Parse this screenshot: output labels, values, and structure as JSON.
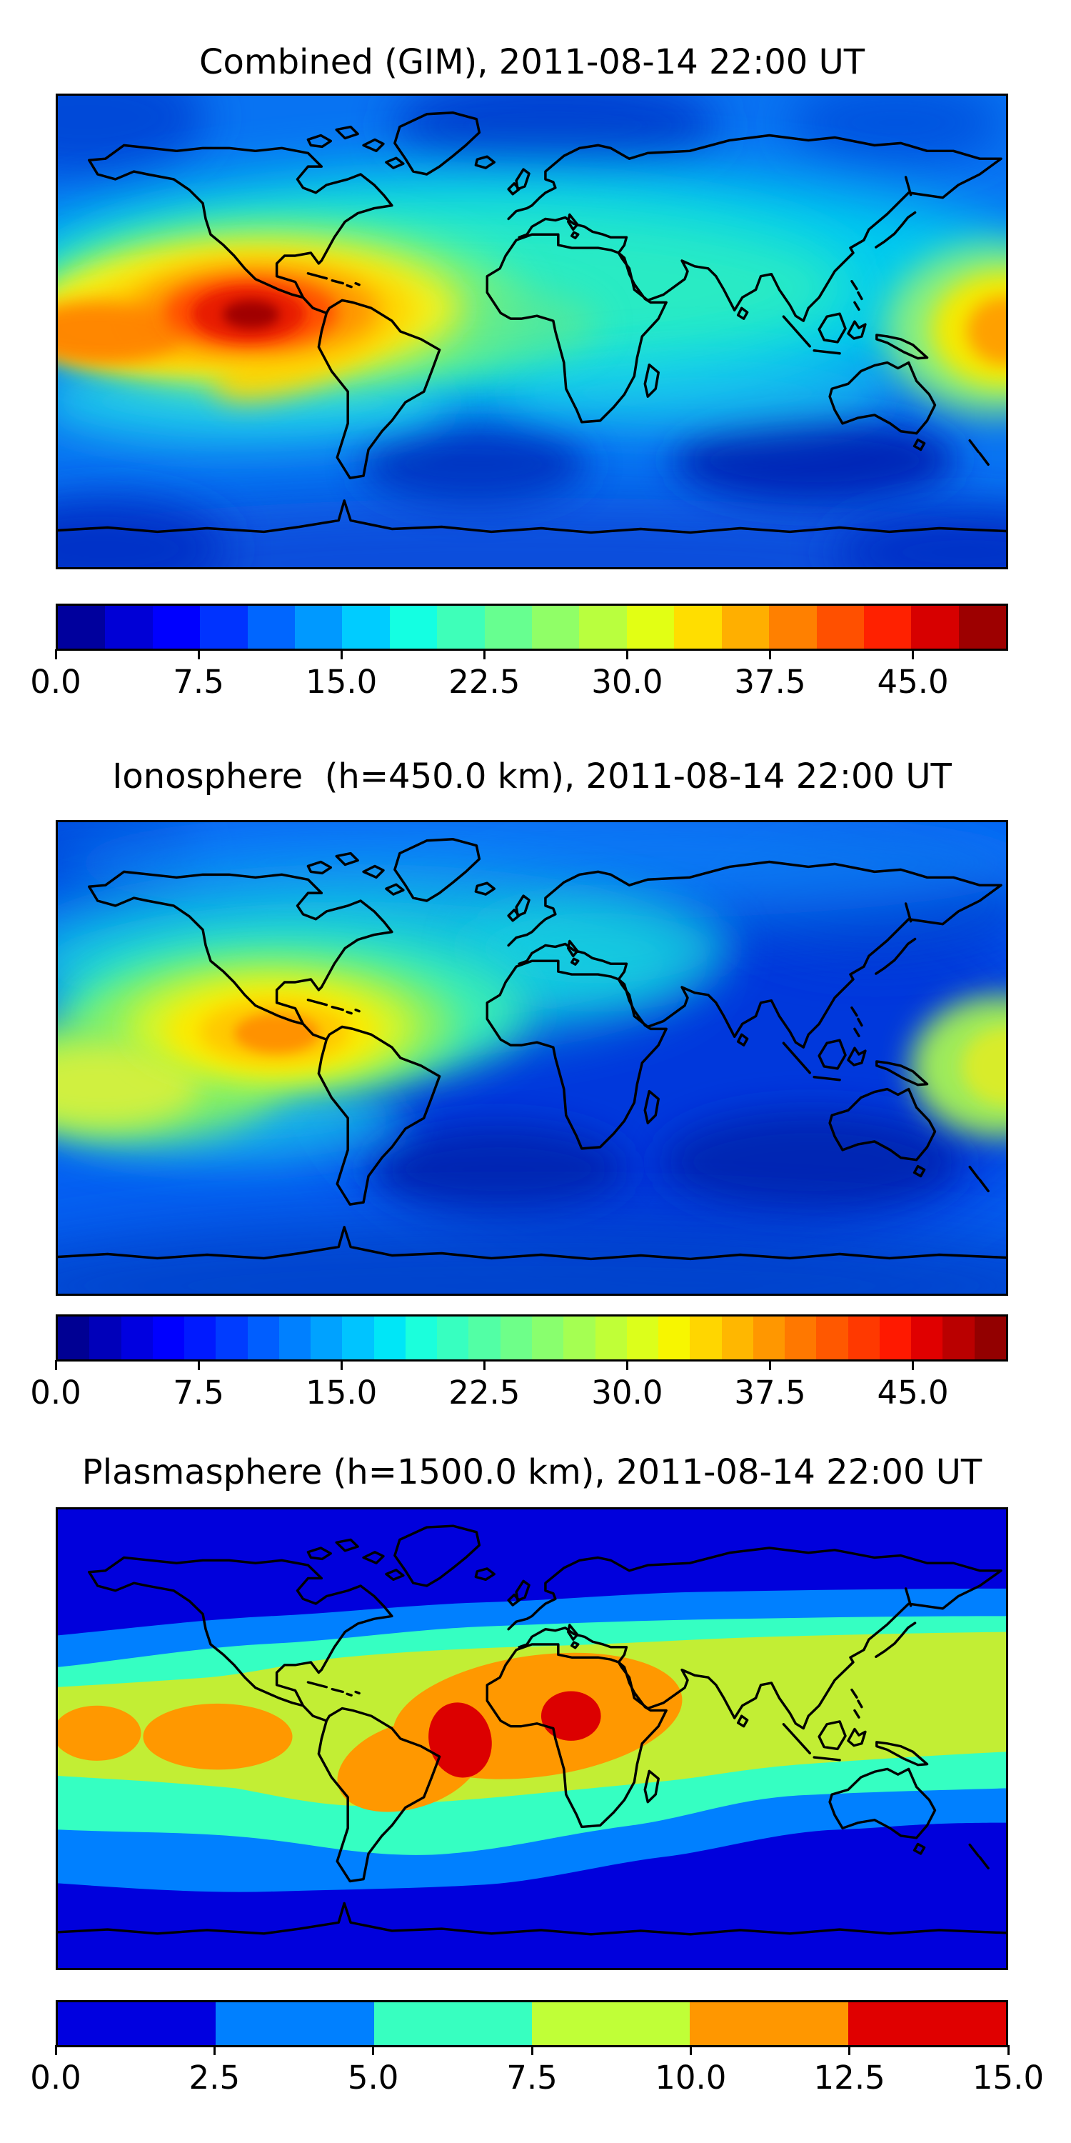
{
  "figure": {
    "background_color": "#ffffff",
    "text_color": "#000000",
    "n_panels": 3
  },
  "chart_data": [
    {
      "type": "heatmap",
      "subtype": "filled-contour-world-map",
      "title": "Combined (GIM), 2011-08-14 22:00 UT",
      "projection": "equirectangular",
      "lon_range": [
        -180,
        180
      ],
      "lat_range": [
        -90,
        90
      ],
      "colormap": "jet",
      "grid": false,
      "legend_position": "bottom-colorbar",
      "levels": {
        "min": 0,
        "max": 50,
        "step": 2.5
      },
      "colorbar_ticks": [
        0,
        7.5,
        15,
        22.5,
        30,
        37.5,
        45
      ],
      "colorbar_tick_labels": [
        "0.0",
        "7.5",
        "15.0",
        "22.5",
        "30.0",
        "37.5",
        "45.0"
      ],
      "segment_colors": [
        "#00009D",
        "#0000D6",
        "#0000FF",
        "#0033FF",
        "#0066FF",
        "#0099FF",
        "#00CCFF",
        "#14FFE2",
        "#3EFFB9",
        "#67FF90",
        "#90FF67",
        "#B9FF3E",
        "#E2FF14",
        "#FFDE00",
        "#FFAF00",
        "#FF8000",
        "#FF5000",
        "#FF2100",
        "#D70000",
        "#9D0000"
      ],
      "features": [
        {
          "name": "primary-tec-maximum",
          "lon": -104,
          "lat": 7,
          "approx_value": 49
        },
        {
          "name": "secondary-maximum-west-pacific",
          "lon": 178,
          "lat": -2,
          "approx_value": 33
        },
        {
          "name": "midlatitude-cyan-band",
          "lat_center": 20,
          "approx_value": 17
        },
        {
          "name": "high-latitude-minimum",
          "lat_center": -65,
          "approx_value": 5
        }
      ]
    },
    {
      "type": "heatmap",
      "subtype": "filled-contour-world-map",
      "title": "Ionosphere  (h=450.0 km), 2011-08-14 22:00 UT",
      "projection": "equirectangular",
      "lon_range": [
        -180,
        180
      ],
      "lat_range": [
        -90,
        90
      ],
      "colormap": "jet",
      "grid": false,
      "legend_position": "bottom-colorbar",
      "levels": {
        "min": 0,
        "max": 50,
        "step": 1.667
      },
      "colorbar_ticks": [
        0,
        7.5,
        15,
        22.5,
        30,
        37.5,
        45
      ],
      "colorbar_tick_labels": [
        "0.0",
        "7.5",
        "15.0",
        "22.5",
        "30.0",
        "37.5",
        "45.0"
      ],
      "segment_colors": [
        "#000093",
        "#0000BA",
        "#0000E0",
        "#0000FF",
        "#001AFF",
        "#003CFF",
        "#005EFF",
        "#0080FF",
        "#00A2FF",
        "#00C4FF",
        "#00E6F7",
        "#1BFFDC",
        "#37FFC0",
        "#52FFA5",
        "#6EFF89",
        "#89FF6E",
        "#A5FF52",
        "#C0FF37",
        "#DCFF1B",
        "#F7F600",
        "#FFD600",
        "#FFB700",
        "#FF9700",
        "#FF7800",
        "#FF5800",
        "#FF3900",
        "#FF1900",
        "#E00000",
        "#BA0000",
        "#930000"
      ],
      "features": [
        {
          "name": "primary-maximum",
          "lon": -102,
          "lat": 10,
          "approx_value": 38
        },
        {
          "name": "secondary-maximum-west-pacific",
          "lon": 179,
          "lat": -3,
          "approx_value": 25
        },
        {
          "name": "low-region-africa-asia",
          "lon": 60,
          "lat": 0,
          "approx_value": 5
        }
      ]
    },
    {
      "type": "heatmap",
      "subtype": "filled-contour-world-map",
      "title": "Plasmasphere (h=1500.0 km), 2011-08-14 22:00 UT",
      "projection": "equirectangular",
      "lon_range": [
        -180,
        180
      ],
      "lat_range": [
        -90,
        90
      ],
      "colormap": "jet",
      "grid": false,
      "legend_position": "bottom-colorbar",
      "levels": {
        "min": 0,
        "max": 15,
        "step": 2.5
      },
      "colorbar_ticks": [
        0,
        2.5,
        5,
        7.5,
        10,
        12.5,
        15
      ],
      "colorbar_tick_labels": [
        "0.0",
        "2.5",
        "5.0",
        "7.5",
        "10.0",
        "12.5",
        "15.0"
      ],
      "segment_colors": [
        "#0000E0",
        "#0080FF",
        "#37FFC0",
        "#C0FF37",
        "#FF9700",
        "#E00000"
      ],
      "features": [
        {
          "name": "equatorial-maximum-atlantic",
          "lon": -27,
          "lat": -3,
          "approx_value": 14
        },
        {
          "name": "equatorial-maximum-africa",
          "lon": 14,
          "lat": 8,
          "approx_value": 14
        },
        {
          "name": "equatorial-band-pacific",
          "lon": -165,
          "lat": 0,
          "approx_value": 11
        },
        {
          "name": "polar-minimum",
          "lat_center": -75,
          "approx_value": 1.5
        }
      ]
    }
  ]
}
